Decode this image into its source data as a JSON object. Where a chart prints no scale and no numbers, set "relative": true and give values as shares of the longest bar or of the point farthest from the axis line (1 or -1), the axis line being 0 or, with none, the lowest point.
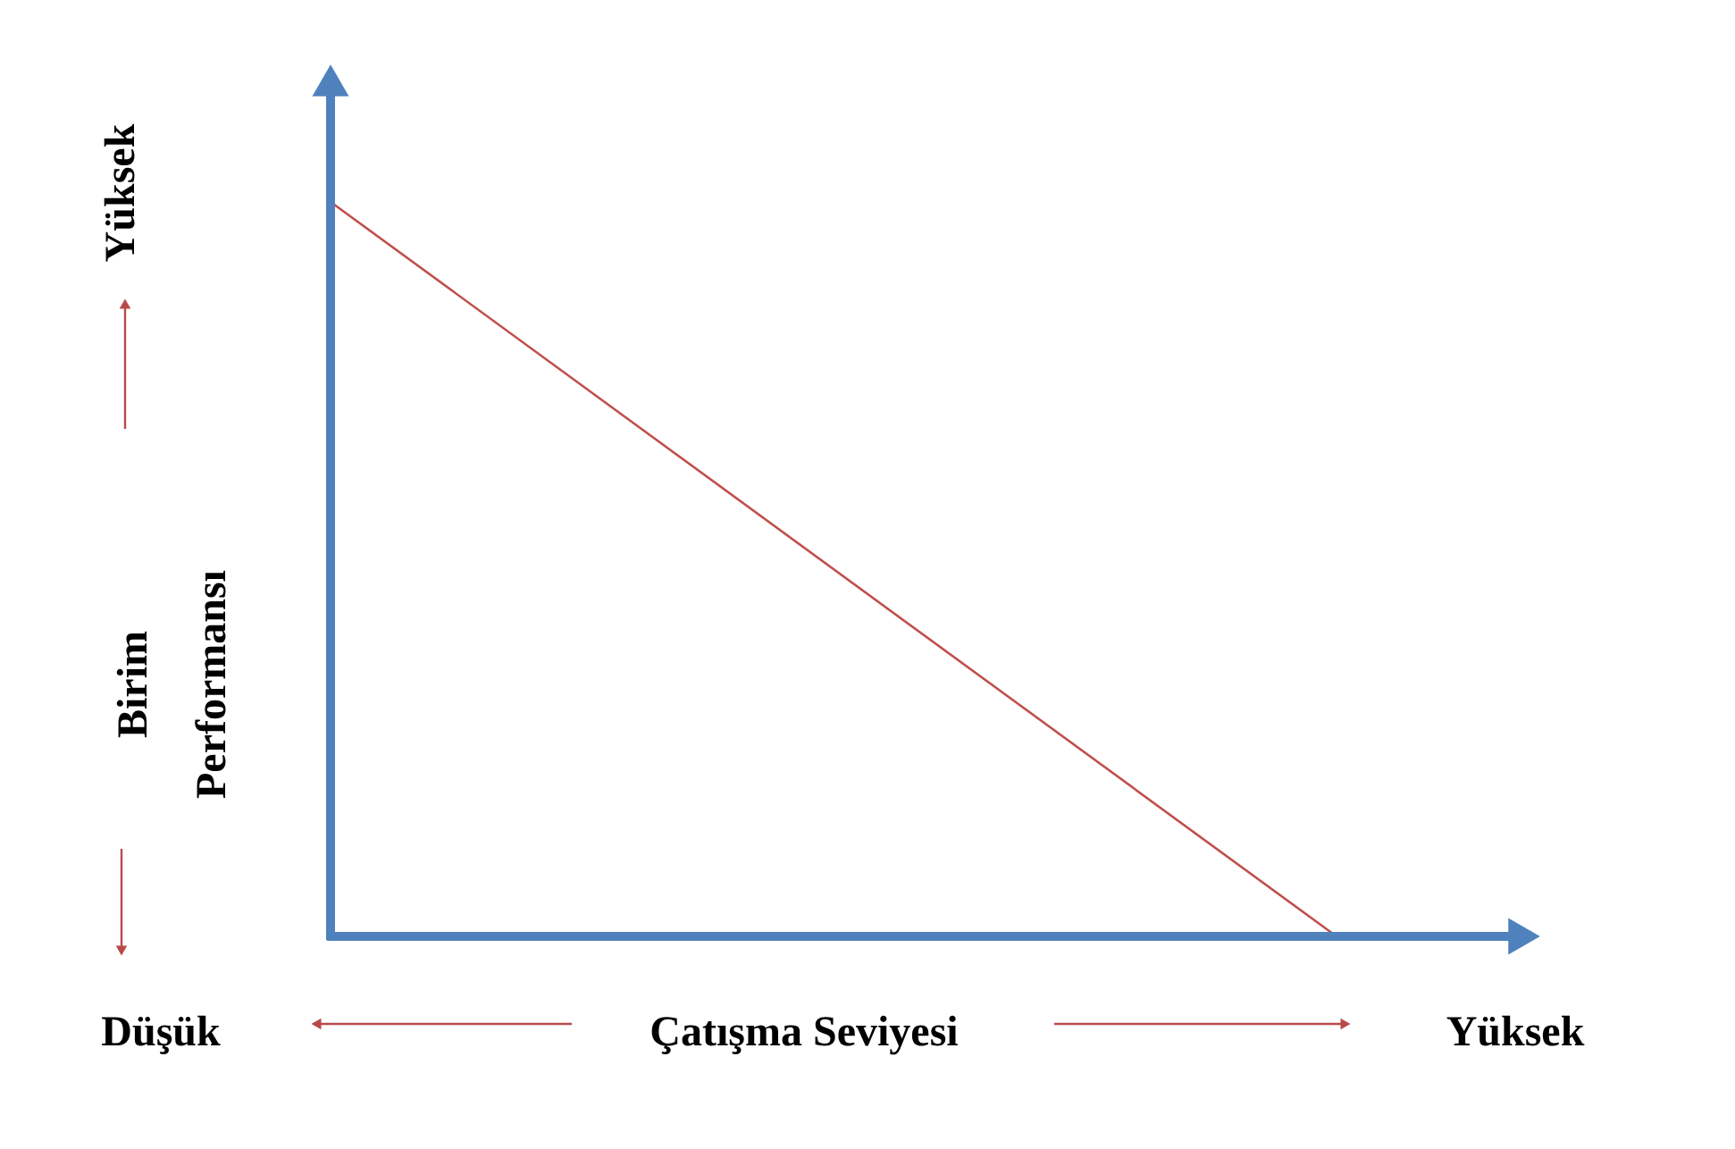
{
  "chart_data": {
    "type": "line",
    "relative": true,
    "categories": [
      null,
      null
    ],
    "series": [
      {
        "color": "#c0504d",
        "values": [
          1,
          0
        ]
      }
    ],
    "xlabel": "Çatışma Seviyesi",
    "ylabel": "Birim Performansı",
    "annotations": [
      "Yüksek",
      "Düşük",
      "Yüksek"
    ],
    "marker": "none"
  }
}
